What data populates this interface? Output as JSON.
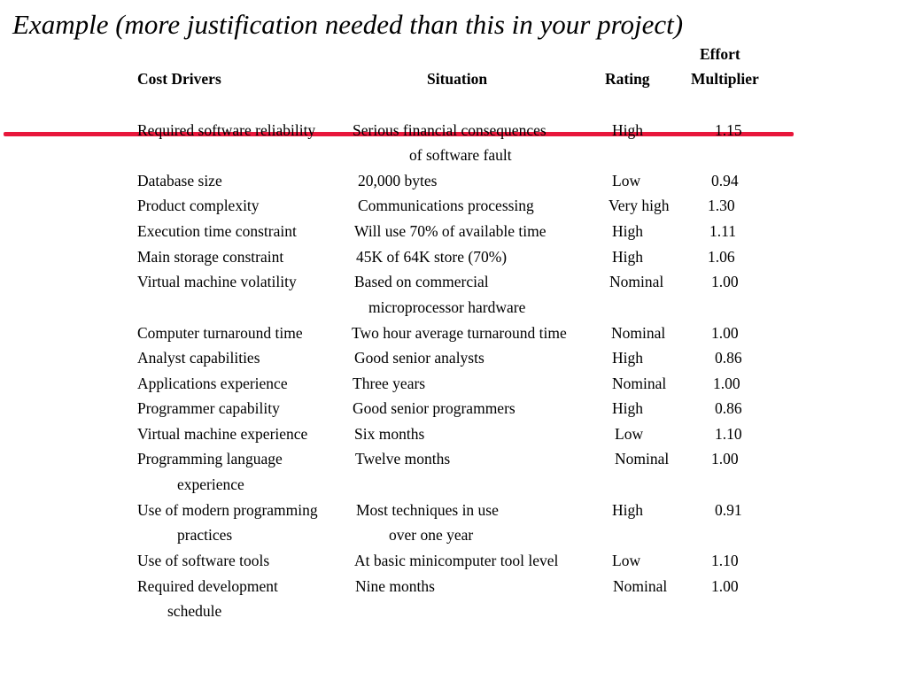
{
  "title": "Example (more justification needed than this in your project)",
  "accent_color": "#e8173b",
  "headers": {
    "cost_drivers": "Cost Drivers",
    "situation": "Situation",
    "rating": "Rating",
    "effort": "Effort",
    "multiplier": "Multiplier"
  },
  "rows": [
    {
      "driver": "Required software reliability",
      "driver_cont": "",
      "situation": "Serious financial consequences",
      "situation_cont": "of software fault",
      "rating": "High",
      "multiplier": "1.15"
    },
    {
      "driver": "Database size",
      "driver_cont": "",
      "situation": "20,000 bytes",
      "situation_cont": "",
      "rating": "Low",
      "multiplier": "0.94"
    },
    {
      "driver": "Product complexity",
      "driver_cont": "",
      "situation": "Communications processing",
      "situation_cont": "",
      "rating": "Very high",
      "multiplier": "1.30"
    },
    {
      "driver": "Execution time constraint",
      "driver_cont": "",
      "situation": "Will use 70% of available time",
      "situation_cont": "",
      "rating": "High",
      "multiplier": "1.11"
    },
    {
      "driver": "Main storage constraint",
      "driver_cont": "",
      "situation": "45K of 64K store (70%)",
      "situation_cont": "",
      "rating": "High",
      "multiplier": "1.06"
    },
    {
      "driver": "Virtual machine volatility",
      "driver_cont": "",
      "situation": "Based on commercial",
      "situation_cont": "microprocessor hardware",
      "rating": "Nominal",
      "multiplier": "1.00"
    },
    {
      "driver": "Computer turnaround time",
      "driver_cont": "",
      "situation": "Two hour average turnaround time",
      "situation_cont": "",
      "rating": "Nominal",
      "multiplier": "1.00"
    },
    {
      "driver": "Analyst capabilities",
      "driver_cont": "",
      "situation": "Good senior analysts",
      "situation_cont": "",
      "rating": "High",
      "multiplier": "0.86"
    },
    {
      "driver": "Applications experience",
      "driver_cont": "",
      "situation": "Three years",
      "situation_cont": "",
      "rating": "Nominal",
      "multiplier": "1.00"
    },
    {
      "driver": "Programmer capability",
      "driver_cont": "",
      "situation": "Good senior programmers",
      "situation_cont": "",
      "rating": "High",
      "multiplier": "0.86"
    },
    {
      "driver": "Virtual machine experience",
      "driver_cont": "",
      "situation": "Six months",
      "situation_cont": "",
      "rating": "Low",
      "multiplier": "1.10"
    },
    {
      "driver": "Programming language",
      "driver_cont": "experience",
      "situation": "Twelve months",
      "situation_cont": "",
      "rating": "Nominal",
      "multiplier": "1.00"
    },
    {
      "driver": "Use of modern programming",
      "driver_cont": "practices",
      "situation": "Most techniques in use",
      "situation_cont": "over one year",
      "rating": "High",
      "multiplier": "0.91"
    },
    {
      "driver": "Use of software tools",
      "driver_cont": "",
      "situation": "At basic minicomputer tool level",
      "situation_cont": "",
      "rating": "Low",
      "multiplier": "1.10"
    },
    {
      "driver": "Required development",
      "driver_cont": "schedule",
      "situation": "Nine months",
      "situation_cont": "",
      "rating": "Nominal",
      "multiplier": "1.00"
    }
  ]
}
